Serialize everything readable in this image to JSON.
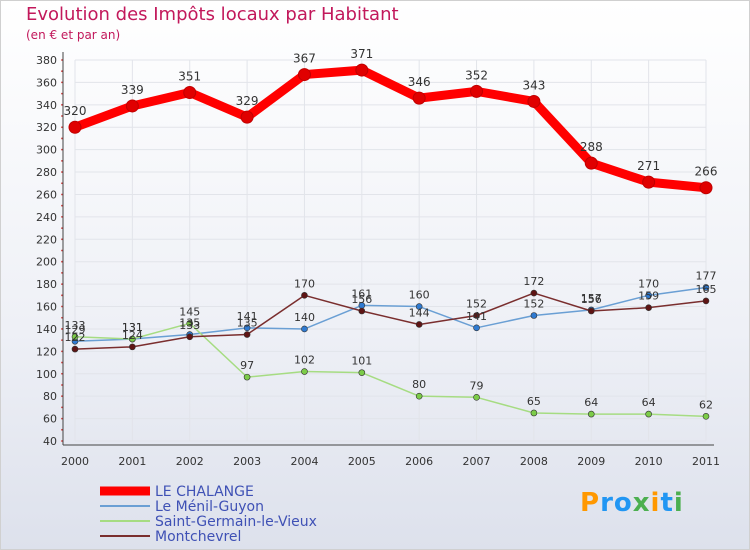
{
  "chart_data": {
    "type": "line",
    "title": "Evolution des Impôts locaux par Habitant",
    "subtitle": "(en € et par an)",
    "categories": [
      "2000",
      "2001",
      "2002",
      "2003",
      "2004",
      "2005",
      "2006",
      "2007",
      "2008",
      "2009",
      "2010",
      "2011"
    ],
    "ylim": [
      40,
      380
    ],
    "yticks": [
      40,
      60,
      80,
      100,
      120,
      140,
      160,
      180,
      200,
      220,
      240,
      260,
      280,
      300,
      320,
      340,
      360,
      380
    ],
    "series": [
      {
        "name": "LE CHALANGE",
        "color": "#ff0000",
        "values": [
          320,
          339,
          351,
          329,
          367,
          371,
          346,
          352,
          343,
          288,
          271,
          266
        ],
        "labels": [
          "320",
          "339",
          "351",
          "329",
          "367",
          "371",
          "346",
          "352",
          "343",
          "288",
          "271",
          "266"
        ]
      },
      {
        "name": "Le Ménil-Guyon",
        "color": "#6a9fd4",
        "point_color": "#2f7ad1",
        "values": [
          129,
          131,
          135,
          141,
          140,
          161,
          160,
          141,
          152,
          157,
          170,
          177
        ],
        "labels": [
          "129",
          "131",
          "135",
          "141",
          "140",
          "161",
          "160",
          "141",
          "152",
          "157",
          "170",
          "177"
        ]
      },
      {
        "name": "Saint-Germain-le-Vieux",
        "color": "#a6dc82",
        "point_color": "#7ccc48",
        "values": [
          133,
          131,
          145,
          97,
          102,
          101,
          80,
          79,
          65,
          64,
          64,
          62
        ],
        "labels": [
          "133",
          "131",
          "145",
          "97",
          "102",
          "101",
          "80",
          "79",
          "65",
          "64",
          "64",
          "62"
        ]
      },
      {
        "name": "Montchevrel",
        "color": "#7a2e2e",
        "point_color": "#5e1414",
        "values": [
          122,
          124,
          133,
          135,
          170,
          156,
          144,
          152,
          172,
          156,
          159,
          165
        ],
        "labels": [
          "122",
          "124",
          "133",
          "135",
          "170",
          "156",
          "144",
          "152",
          "172",
          "156",
          "159",
          "165"
        ]
      }
    ]
  },
  "logo": {
    "letters": [
      "P",
      "r",
      "o",
      "x",
      "i",
      "t",
      "i"
    ]
  }
}
